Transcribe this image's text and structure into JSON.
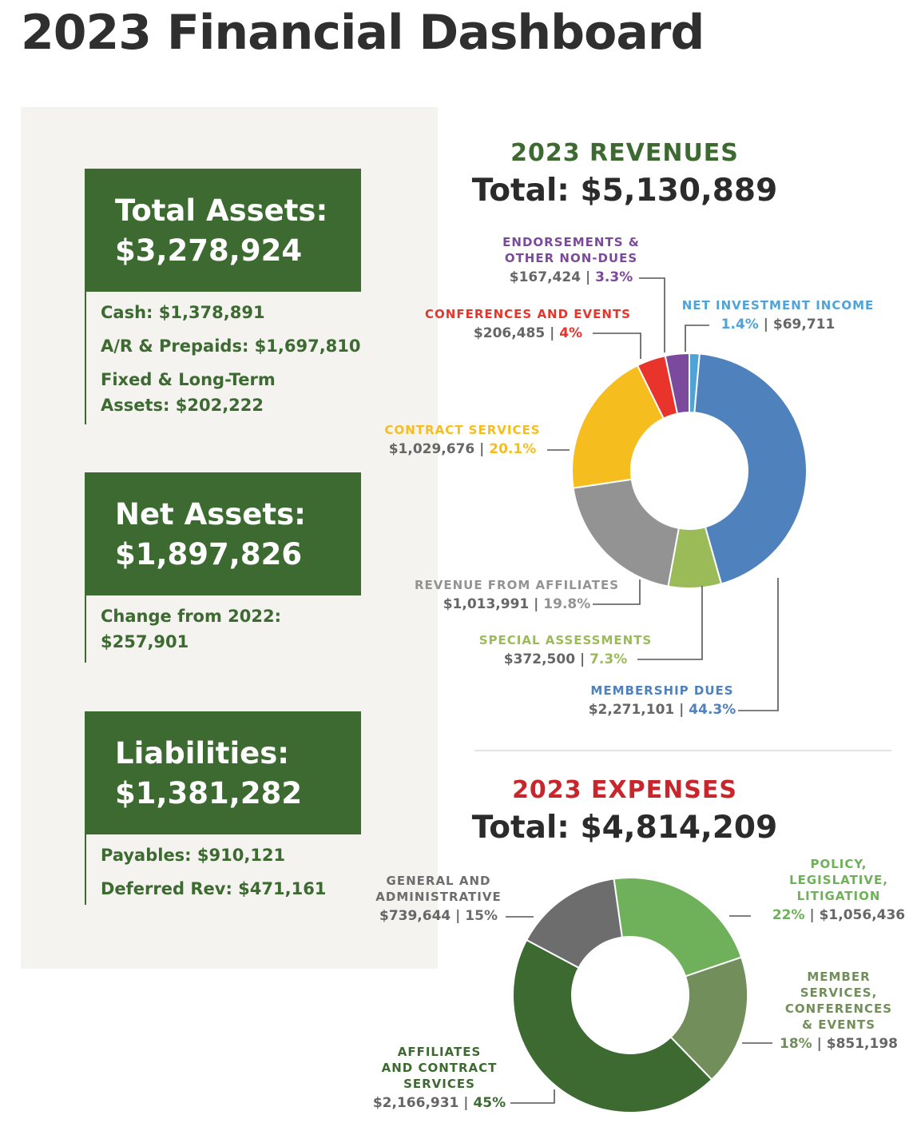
{
  "title": "2023 Financial Dashboard",
  "cards": {
    "assets": {
      "label": "Total Assets:",
      "value": "$3,278,924",
      "rows": [
        "Cash: $1,378,891",
        "A/R & Prepaids: $1,697,810",
        "Fixed & Long-Term",
        "Assets: $202,222"
      ]
    },
    "net": {
      "label": "Net Assets:",
      "value": "$1,897,826",
      "rows": [
        "Change from 2022:",
        "$257,901"
      ]
    },
    "liabilities": {
      "label": "Liabilities:",
      "value": "$1,381,282",
      "rows": [
        "Payables: $910,121",
        "Deferred Rev: $471,161"
      ]
    }
  },
  "revenues": {
    "title": "2023 REVENUES",
    "total": "Total: $5,130,889",
    "title_color": "#3c6a31"
  },
  "expenses": {
    "title": "2023 EXPENSES",
    "total": "Total: $4,814,209",
    "title_color": "#c8262c"
  },
  "chart_data": [
    {
      "type": "pie",
      "title": "2023 REVENUES",
      "subtitle": "Total: $5,130,889",
      "slices": [
        {
          "label": "NET INVESTMENT INCOME",
          "amount": "$69,711",
          "pct": "1.4%",
          "value": 1.4,
          "color": "#4ea3d9",
          "amount_first": false
        },
        {
          "label": "MEMBERSHIP DUES",
          "amount": "$2,271,101",
          "pct": "44.3%",
          "value": 44.3,
          "color": "#4f81bd",
          "amount_first": true
        },
        {
          "label": "SPECIAL ASSESSMENTS",
          "amount": "$372,500",
          "pct": "7.3%",
          "value": 7.3,
          "color": "#9bbb59",
          "amount_first": true
        },
        {
          "label": "REVENUE FROM AFFILIATES",
          "amount": "$1,013,991",
          "pct": "19.8%",
          "value": 19.8,
          "color": "#939393",
          "amount_first": true
        },
        {
          "label": "CONTRACT SERVICES",
          "amount": "$1,029,676",
          "pct": "20.1%",
          "value": 20.1,
          "color": "#f6bd1e",
          "amount_first": true
        },
        {
          "label": "CONFERENCES AND EVENTS",
          "amount": "$206,485",
          "pct": "4%",
          "value": 4.0,
          "color": "#e8342b",
          "amount_first": true
        },
        {
          "label": "ENDORSEMENTS & OTHER NON-DUES",
          "label_lines": [
            "ENDORSEMENTS &",
            "OTHER NON-DUES"
          ],
          "amount": "$167,424",
          "pct": "3.3%",
          "value": 3.3,
          "color": "#7c4a9c",
          "amount_first": true
        }
      ]
    },
    {
      "type": "pie",
      "title": "2023 EXPENSES",
      "subtitle": "Total: $4,814,209",
      "slices": [
        {
          "label": "POLICY, LEGISLATIVE, LITIGATION",
          "label_lines": [
            "POLICY,",
            "LEGISLATIVE,",
            "LITIGATION"
          ],
          "amount": "$1,056,436",
          "pct": "22%",
          "value": 22,
          "color": "#6fb05a",
          "amount_first": false
        },
        {
          "label": "MEMBER SERVICES, CONFERENCES & EVENTS",
          "label_lines": [
            "MEMBER",
            "SERVICES,",
            "CONFERENCES",
            "& EVENTS"
          ],
          "amount": "$851,198",
          "pct": "18%",
          "value": 18,
          "color": "#728f5b",
          "amount_first": false
        },
        {
          "label": "AFFILIATES AND CONTRACT SERVICES",
          "label_lines": [
            "AFFILIATES",
            "AND CONTRACT",
            "SERVICES"
          ],
          "amount": "$2,166,931",
          "pct": "45%",
          "value": 45,
          "color": "#3c6a31",
          "amount_first": true
        },
        {
          "label": "GENERAL AND ADMINISTRATIVE",
          "label_lines": [
            "GENERAL AND",
            "ADMINISTRATIVE"
          ],
          "amount": "$739,644",
          "pct": "15%",
          "value": 15,
          "color": "#6d6d6d",
          "amount_first": true
        }
      ]
    }
  ]
}
